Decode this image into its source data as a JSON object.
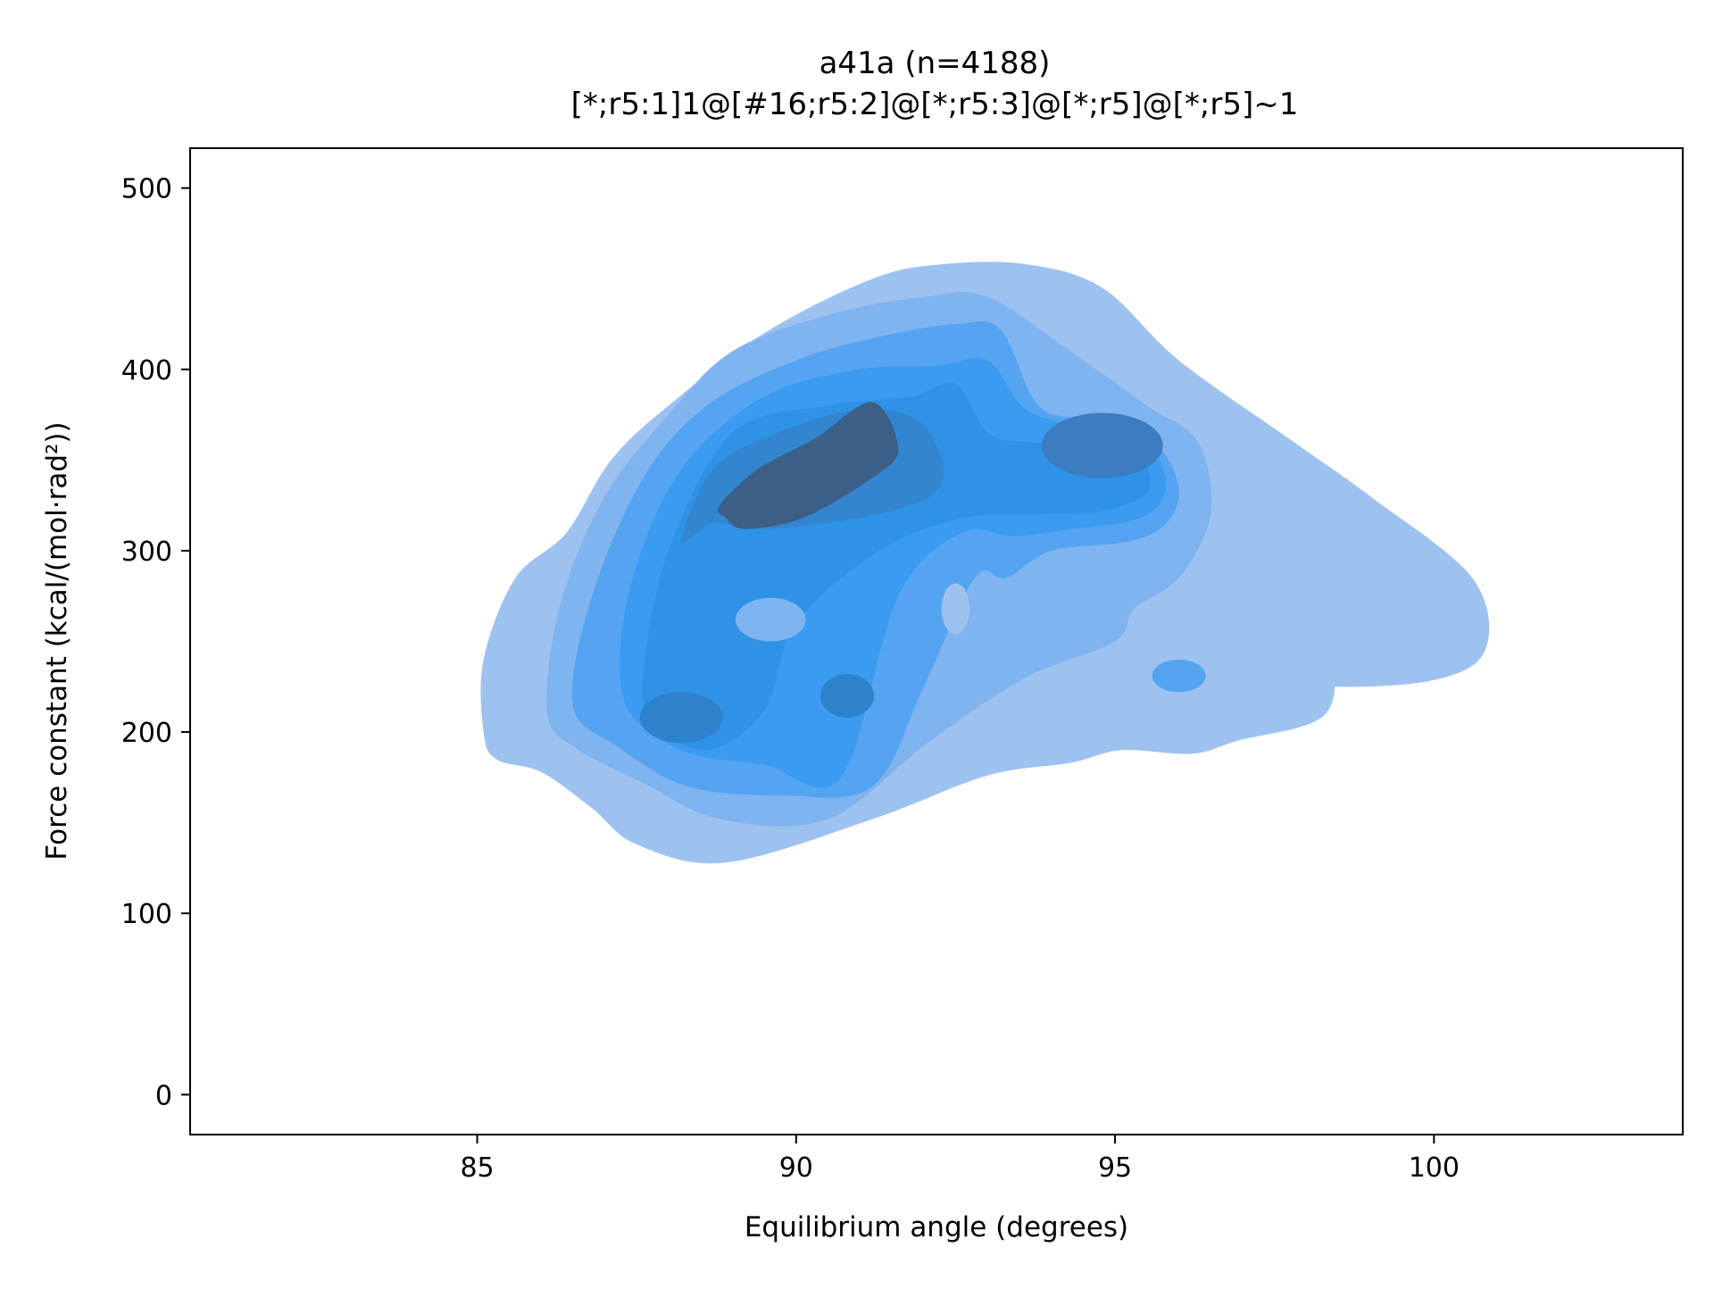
{
  "chart_data": {
    "type": "kde_contour",
    "title": "a41a (n=4188)",
    "subtitle": "[*;r5:1]1@[#16;r5:2]@[*;r5:3]@[*;r5]@[*;r5]~1",
    "xlabel": "Equilibrium angle (degrees)",
    "ylabel": "Force constant (kcal/(mol·rad²))",
    "xlim": [
      80.5,
      103.9
    ],
    "ylim": [
      -22,
      522
    ],
    "xticks": [
      85,
      90,
      95,
      100
    ],
    "yticks": [
      0,
      100,
      200,
      300,
      400,
      500
    ],
    "grid": false,
    "legend": "none",
    "n": 4188,
    "fill_color": "#1f8ff0",
    "levels": [
      {
        "name": "level-1",
        "color": "#9ec2f0",
        "x": [
          85.1,
          85.1,
          85.6,
          86.4,
          87.1,
          88.0,
          89.5,
          91.2,
          92.3,
          93.6,
          94.8,
          96.0,
          97.8,
          99.0,
          100.6,
          100.8,
          99.9,
          98.0,
          97.1,
          97.3,
          98.3,
          98.3,
          96.9,
          96.2,
          95.1,
          94.3,
          93.0,
          91.2,
          88.9,
          87.5,
          86.8,
          86.0,
          85.3
        ],
        "y": [
          200,
          240,
          285,
          310,
          350,
          380,
          420,
          450,
          458,
          458,
          445,
          405,
          360,
          330,
          285,
          245,
          228,
          226,
          240,
          265,
          250,
          210,
          195,
          188,
          190,
          183,
          176,
          152,
          128,
          138,
          158,
          178,
          185
        ]
      },
      {
        "name": "level-2",
        "color": "#7fb4f0",
        "x": [
          86.1,
          86.3,
          87.0,
          88.0,
          89.0,
          90.5,
          92.0,
          93.0,
          94.3,
          95.5,
          96.3,
          96.5,
          96.0,
          95.3,
          95.0,
          93.6,
          92.1,
          90.5,
          88.8,
          87.6,
          86.6
        ],
        "y": [
          210,
          270,
          330,
          375,
          410,
          430,
          440,
          440,
          410,
          380,
          360,
          320,
          285,
          268,
          250,
          230,
          195,
          152,
          152,
          172,
          190
        ]
      },
      {
        "name": "level-3",
        "color": "#55a4f2",
        "x": [
          86.5,
          86.8,
          87.6,
          88.6,
          90.0,
          91.3,
          92.5,
          93.2,
          93.8,
          94.6,
          95.6,
          96.0,
          95.8,
          95.2,
          94.0,
          93.3,
          92.8,
          92.0,
          91.2,
          89.8,
          88.3,
          87.2
        ],
        "y": [
          215,
          275,
          340,
          380,
          405,
          418,
          425,
          422,
          380,
          372,
          360,
          335,
          315,
          305,
          300,
          285,
          285,
          225,
          170,
          165,
          170,
          192
        ]
      },
      {
        "name": "level-4",
        "color": "#3a9bf0",
        "x": [
          87.3,
          87.4,
          88.2,
          89.5,
          91.0,
          92.2,
          93.0,
          93.6,
          94.5,
          95.5,
          95.8,
          95.4,
          94.3,
          93.4,
          92.6,
          91.6,
          90.7,
          89.5,
          88.2
        ],
        "y": [
          218,
          280,
          345,
          385,
          400,
          402,
          405,
          378,
          368,
          358,
          335,
          318,
          312,
          308,
          310,
          275,
          175,
          182,
          190
        ]
      },
      {
        "name": "level-5",
        "color": "#2e93e6",
        "x": [
          87.6,
          88.0,
          89.0,
          90.5,
          91.8,
          92.5,
          93.0,
          93.6,
          94.5,
          95.4,
          95.5,
          94.8,
          93.8,
          92.6,
          91.3,
          90.0,
          89.5,
          88.6,
          87.8
        ],
        "y": [
          230,
          300,
          365,
          380,
          385,
          392,
          365,
          360,
          358,
          350,
          332,
          322,
          320,
          318,
          300,
          260,
          212,
          190,
          205
        ]
      },
      {
        "name": "level-6",
        "color": "#3385cf",
        "x": [
          88.2,
          88.7,
          89.7,
          91.0,
          91.9,
          92.3,
          92.1,
          91.0,
          89.5,
          88.7
        ],
        "y": [
          305,
          345,
          365,
          378,
          372,
          348,
          330,
          318,
          312,
          315
        ]
      },
      {
        "name": "level-7",
        "color": "#3c5f87",
        "x": [
          88.8,
          89.4,
          90.3,
          91.2,
          91.6,
          91.1,
          90.1,
          89.2,
          88.9
        ],
        "y": [
          325,
          345,
          362,
          382,
          355,
          338,
          318,
          312,
          318
        ]
      }
    ],
    "blobs": [
      {
        "name": "low-density-hole-left",
        "color": "#7fb4f0",
        "cx": 89.6,
        "cy": 262,
        "rx": 0.55,
        "ry": 12
      },
      {
        "name": "low-density-hole-center",
        "color": "#9ec2f0",
        "cx": 92.5,
        "cy": 268,
        "rx": 0.22,
        "ry": 14
      },
      {
        "name": "mode-lower-left",
        "color": "#2e82cc",
        "cx": 88.2,
        "cy": 208,
        "rx": 0.65,
        "ry": 14
      },
      {
        "name": "mode-lower-center",
        "color": "#2e82cc",
        "cx": 90.8,
        "cy": 220,
        "rx": 0.42,
        "ry": 12
      },
      {
        "name": "mode-right",
        "color": "#3a7dc1",
        "cx": 94.8,
        "cy": 358,
        "rx": 0.95,
        "ry": 18
      },
      {
        "name": "peak-far-right",
        "color": "#55a4f2",
        "cx": 96.0,
        "cy": 231,
        "rx": 0.42,
        "ry": 9
      }
    ]
  }
}
